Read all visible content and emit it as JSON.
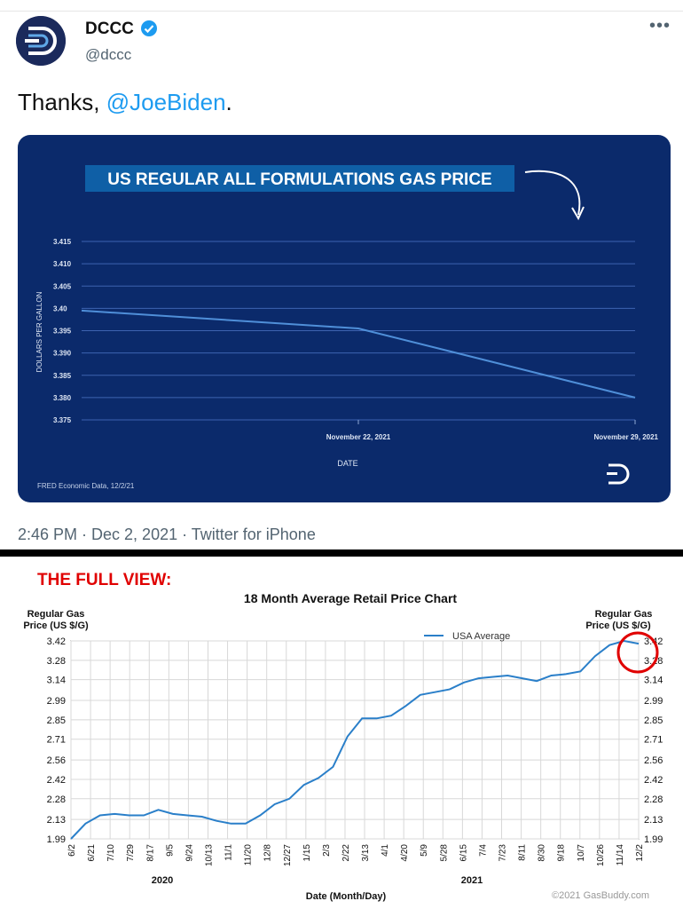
{
  "tweet": {
    "author_name": "DCCC",
    "author_handle": "@dccc",
    "more_label": "•••",
    "text_prefix": "Thanks, ",
    "mention": "@JoeBiden",
    "text_suffix": ".",
    "timestamp": "2:46 PM · Dec 2, 2021 · Twitter for iPhone"
  },
  "annotation": {
    "full_view_label": "THE FULL VIEW:"
  },
  "colors": {
    "card_bg": "#0b2a6b",
    "mention": "#1d9bf0",
    "gb_line": "#2a7fc9",
    "annotation_red": "#e00000",
    "title_badge": "#0f5fa6"
  },
  "chart_data": [
    {
      "type": "line",
      "title": "US REGULAR ALL FORMULATIONS GAS PRICE",
      "xlabel": "DATE",
      "ylabel": "DOLLARS PER GALLON",
      "x_tick_labels": [
        "November 22, 2021",
        "November 29, 2021"
      ],
      "y_tick_labels": [
        "3.415",
        "3.410",
        "3.405",
        "3.40",
        "3.395",
        "3.390",
        "3.385",
        "3.380",
        "3.375"
      ],
      "ylim": [
        3.375,
        3.415
      ],
      "x": [
        "2021-11-15",
        "2021-11-22",
        "2021-11-29"
      ],
      "values": [
        3.3995,
        3.3955,
        3.38
      ],
      "grid": true,
      "source": "FRED Economic Data, 12/2/21"
    },
    {
      "type": "line",
      "title": "18 Month Average Retail Price Chart",
      "xlabel": "Date (Month/Day)",
      "ylabel": "Regular Gas Price (US $/G)",
      "ylabel_right": "Regular Gas Price (US $/G)",
      "y_tick_labels": [
        "3.42",
        "3.28",
        "3.14",
        "2.99",
        "2.85",
        "2.71",
        "2.56",
        "2.42",
        "2.28",
        "2.13",
        "1.99"
      ],
      "ylim": [
        1.99,
        3.42
      ],
      "x_tick_labels": [
        "6/2",
        "6/21",
        "7/10",
        "7/29",
        "8/17",
        "9/5",
        "9/24",
        "10/13",
        "11/1",
        "11/20",
        "12/8",
        "12/27",
        "1/15",
        "2/3",
        "2/22",
        "3/13",
        "4/1",
        "4/20",
        "5/9",
        "5/28",
        "6/15",
        "7/4",
        "7/23",
        "8/11",
        "8/30",
        "9/18",
        "10/7",
        "10/26",
        "11/14",
        "12/2"
      ],
      "year_labels": [
        "2020",
        "2021"
      ],
      "series": [
        {
          "name": "USA Average",
          "values": [
            1.99,
            2.1,
            2.16,
            2.17,
            2.16,
            2.16,
            2.2,
            2.17,
            2.16,
            2.15,
            2.12,
            2.1,
            2.1,
            2.16,
            2.24,
            2.28,
            2.38,
            2.43,
            2.51,
            2.73,
            2.86,
            2.86,
            2.88,
            2.95,
            3.03,
            3.05,
            3.07,
            3.12,
            3.15,
            3.16,
            3.17,
            3.15,
            3.13,
            3.17,
            3.18,
            3.2,
            3.31,
            3.39,
            3.42,
            3.4
          ]
        }
      ],
      "grid": true,
      "copyright": "©2021 GasBuddy.com"
    }
  ]
}
